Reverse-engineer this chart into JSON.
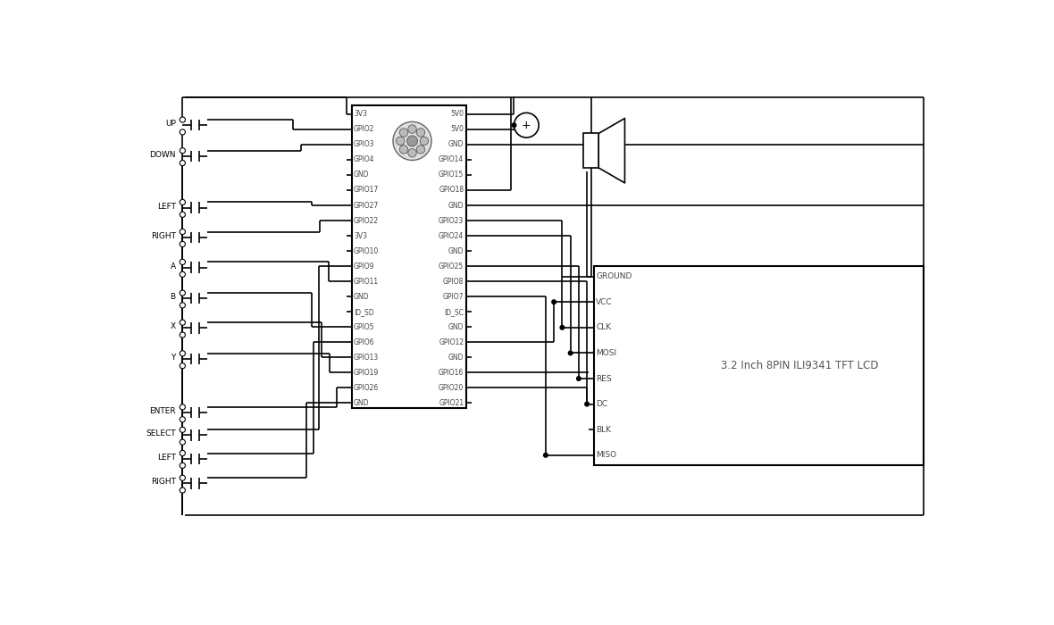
{
  "bg_color": "#ffffff",
  "line_color": "#000000",
  "lw": 1.2,
  "pi_left_pins": [
    "3V3",
    "GPIO2",
    "GPIO3",
    "GPIO4",
    "GND",
    "GPIO17",
    "GPIO27",
    "GPIO22",
    "3V3",
    "GPIO10",
    "GPIO9",
    "GPIO11",
    "GND",
    "ID_SD",
    "GPIO5",
    "GPIO6",
    "GPIO13",
    "GPIO19",
    "GPIO26",
    "GND"
  ],
  "pi_right_pins": [
    "5V0",
    "5V0",
    "GND",
    "GPIO14",
    "GPIO15",
    "GPIO18",
    "GND",
    "GPIO23",
    "GPIO24",
    "GND",
    "GPIO25",
    "GPIO8",
    "GPIO7",
    "ID_SC",
    "GND",
    "GPIO12",
    "GND",
    "GPIO16",
    "GPIO20",
    "GPIO21"
  ],
  "lcd_pins": [
    "GROUND",
    "VCC",
    "CLK",
    "MOSI",
    "RES",
    "DC",
    "BLK",
    "MISO"
  ],
  "lcd_label": "3.2 Inch 8PIN ILI9341 TFT LCD",
  "btn_labels": [
    "UP",
    "DOWN",
    "LEFT",
    "RIGHT",
    "A",
    "B",
    "X",
    "Y",
    "ENTER",
    "SELECT",
    "LEFT",
    "RIGHT"
  ]
}
